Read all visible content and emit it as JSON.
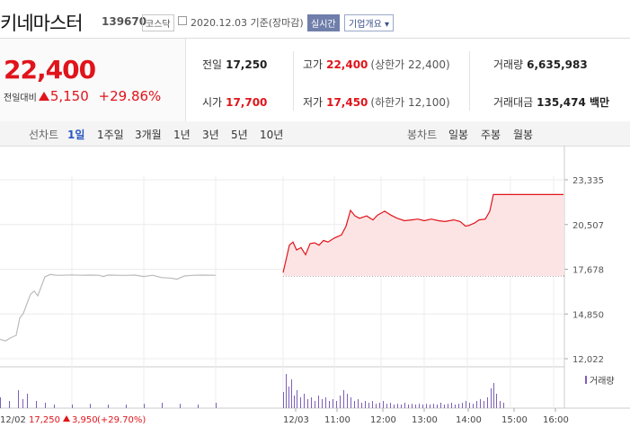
{
  "stock": {
    "name": "키네마스터",
    "code": "139670",
    "market": "코스닥",
    "date": "2020.12.03",
    "date_suffix": "기준(장마감)",
    "live": "실시간",
    "info": "기업개요"
  },
  "summary": {
    "price": "22,400",
    "change_label": "전일대비",
    "change": "5,150",
    "change_pct": "+29.86%",
    "prev_label": "전일",
    "prev": "17,250",
    "high_label": "고가",
    "high": "22,400",
    "upper_limit": "(상한가 22,400)",
    "volume_label": "거래량",
    "volume": "6,635,983",
    "open_label": "시가",
    "open": "17,700",
    "low_label": "저가",
    "low": "17,450",
    "lower_limit": "(하한가 12,100)",
    "amount_label": "거래대금",
    "amount": "135,474 백만"
  },
  "tabs": {
    "line_label": "선차트",
    "periods": [
      "1일",
      "1주일",
      "3개월",
      "1년",
      "3년",
      "5년",
      "10년"
    ],
    "candle_label": "봉차트",
    "candle_periods": [
      "일봉",
      "주봉",
      "월봉"
    ]
  },
  "colors": {
    "up": "#e0141b",
    "prev_line": "#bbbbbb",
    "today_fill": "#fde4e4"
  },
  "chart_data": {
    "type": "line",
    "y_ticks": [
      "23,335",
      "20,507",
      "17,678",
      "14,850",
      "12,022"
    ],
    "ylim": [
      12022,
      23335
    ],
    "x_ticks": [
      "12/03",
      "11:00",
      "12:00",
      "13:00",
      "14:00",
      "15:00",
      "16:00"
    ],
    "reference_price": 17250,
    "volume_legend": "거래량",
    "footer": {
      "date": "12/02",
      "close": "17,250",
      "change": "3,950",
      "pct": "(+29.70%)"
    },
    "series": [
      {
        "name": "12/02",
        "points": [
          [
            0,
            13250
          ],
          [
            6,
            13150
          ],
          [
            12,
            13350
          ],
          [
            18,
            13500
          ],
          [
            22,
            14600
          ],
          [
            26,
            14900
          ],
          [
            30,
            15500
          ],
          [
            34,
            16100
          ],
          [
            38,
            16300
          ],
          [
            42,
            16000
          ],
          [
            46,
            16600
          ],
          [
            50,
            17200
          ],
          [
            56,
            17350
          ],
          [
            62,
            17300
          ],
          [
            70,
            17300
          ],
          [
            80,
            17320
          ],
          [
            90,
            17300
          ],
          [
            100,
            17310
          ],
          [
            110,
            17300
          ],
          [
            115,
            17220
          ],
          [
            120,
            17310
          ],
          [
            130,
            17300
          ],
          [
            140,
            17290
          ],
          [
            150,
            17310
          ],
          [
            160,
            17220
          ],
          [
            170,
            17300
          ],
          [
            180,
            17150
          ],
          [
            190,
            17120
          ],
          [
            197,
            17050
          ],
          [
            205,
            17250
          ],
          [
            215,
            17300
          ],
          [
            225,
            17310
          ],
          [
            240,
            17300
          ]
        ]
      },
      {
        "name": "12/03",
        "points": [
          [
            315,
            17470
          ],
          [
            318,
            18200
          ],
          [
            322,
            19200
          ],
          [
            326,
            19400
          ],
          [
            330,
            18900
          ],
          [
            335,
            19050
          ],
          [
            340,
            18600
          ],
          [
            345,
            19300
          ],
          [
            350,
            19350
          ],
          [
            355,
            19200
          ],
          [
            360,
            19500
          ],
          [
            365,
            19400
          ],
          [
            372,
            19650
          ],
          [
            380,
            19850
          ],
          [
            385,
            20400
          ],
          [
            390,
            21400
          ],
          [
            395,
            21050
          ],
          [
            400,
            20900
          ],
          [
            408,
            21050
          ],
          [
            415,
            20800
          ],
          [
            420,
            21100
          ],
          [
            428,
            21350
          ],
          [
            435,
            21100
          ],
          [
            442,
            20900
          ],
          [
            450,
            20750
          ],
          [
            458,
            20800
          ],
          [
            465,
            20850
          ],
          [
            472,
            20750
          ],
          [
            480,
            20850
          ],
          [
            488,
            20750
          ],
          [
            495,
            20700
          ],
          [
            505,
            20800
          ],
          [
            512,
            20700
          ],
          [
            518,
            20400
          ],
          [
            522,
            20450
          ],
          [
            528,
            20600
          ],
          [
            533,
            20800
          ],
          [
            540,
            20850
          ],
          [
            545,
            21350
          ],
          [
            549,
            22400
          ],
          [
            560,
            22400
          ],
          [
            600,
            22400
          ],
          [
            627,
            22400
          ]
        ]
      }
    ],
    "volume_bars": [
      [
        315,
        0.45
      ],
      [
        318,
        0.95
      ],
      [
        321,
        0.6
      ],
      [
        324,
        0.8
      ],
      [
        327,
        0.35
      ],
      [
        330,
        0.5
      ],
      [
        334,
        0.3
      ],
      [
        338,
        0.4
      ],
      [
        342,
        0.25
      ],
      [
        346,
        0.3
      ],
      [
        350,
        0.2
      ],
      [
        354,
        0.35
      ],
      [
        358,
        0.25
      ],
      [
        362,
        0.3
      ],
      [
        366,
        0.2
      ],
      [
        370,
        0.25
      ],
      [
        374,
        0.2
      ],
      [
        378,
        0.35
      ],
      [
        382,
        0.5
      ],
      [
        386,
        0.4
      ],
      [
        390,
        0.3
      ],
      [
        394,
        0.2
      ],
      [
        398,
        0.25
      ],
      [
        402,
        0.15
      ],
      [
        406,
        0.2
      ],
      [
        410,
        0.15
      ],
      [
        414,
        0.2
      ],
      [
        418,
        0.12
      ],
      [
        422,
        0.15
      ],
      [
        426,
        0.2
      ],
      [
        430,
        0.12
      ],
      [
        434,
        0.15
      ],
      [
        438,
        0.1
      ],
      [
        442,
        0.12
      ],
      [
        446,
        0.1
      ],
      [
        450,
        0.15
      ],
      [
        454,
        0.1
      ],
      [
        458,
        0.12
      ],
      [
        462,
        0.1
      ],
      [
        466,
        0.12
      ],
      [
        470,
        0.1
      ],
      [
        474,
        0.12
      ],
      [
        478,
        0.1
      ],
      [
        482,
        0.12
      ],
      [
        486,
        0.1
      ],
      [
        490,
        0.15
      ],
      [
        494,
        0.1
      ],
      [
        498,
        0.12
      ],
      [
        502,
        0.15
      ],
      [
        506,
        0.1
      ],
      [
        510,
        0.12
      ],
      [
        514,
        0.15
      ],
      [
        518,
        0.2
      ],
      [
        522,
        0.15
      ],
      [
        526,
        0.12
      ],
      [
        530,
        0.2
      ],
      [
        534,
        0.25
      ],
      [
        538,
        0.2
      ],
      [
        542,
        0.3
      ],
      [
        546,
        0.55
      ],
      [
        549,
        0.7
      ],
      [
        552,
        0.4
      ],
      [
        556,
        0.2
      ],
      [
        560,
        0.15
      ],
      [
        0,
        0.3
      ],
      [
        10,
        0.2
      ],
      [
        20,
        0.5
      ],
      [
        25,
        0.25
      ],
      [
        30,
        0.4
      ],
      [
        40,
        0.2
      ],
      [
        50,
        0.15
      ],
      [
        60,
        0.1
      ],
      [
        80,
        0.1
      ],
      [
        100,
        0.12
      ],
      [
        120,
        0.1
      ],
      [
        140,
        0.1
      ],
      [
        160,
        0.12
      ],
      [
        180,
        0.15
      ],
      [
        200,
        0.12
      ],
      [
        220,
        0.1
      ],
      [
        240,
        0.15
      ]
    ]
  }
}
